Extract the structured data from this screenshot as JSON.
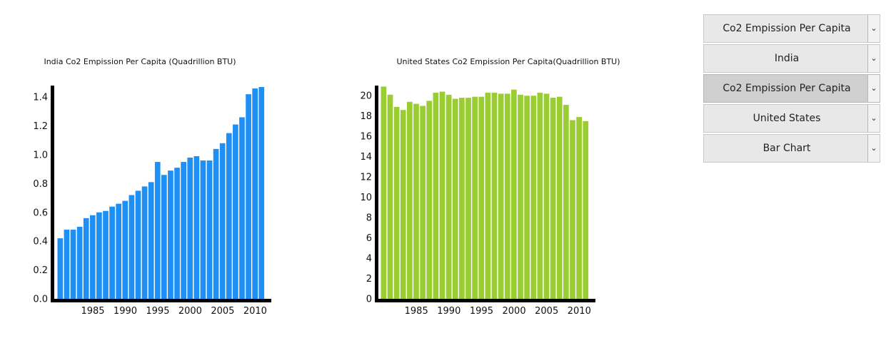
{
  "colors": {
    "india_bar": "#1e8ff5",
    "us_bar": "#9acd32",
    "axis": "#000000"
  },
  "controls": [
    {
      "label": "Co2 Empission Per Capita",
      "icon": "chevron-down-icon",
      "active": false
    },
    {
      "label": "India",
      "icon": "chevron-down-icon",
      "active": false
    },
    {
      "label": "Co2 Empission Per Capita",
      "icon": "chevron-down-icon",
      "active": true
    },
    {
      "label": "United States",
      "icon": "chevron-down-icon",
      "active": false
    },
    {
      "label": "Bar Chart",
      "icon": "chevron-down-icon",
      "active": false
    }
  ],
  "chart_data": [
    {
      "type": "bar",
      "title": "India Co2 Empission Per Capita (Quadrillion BTU)",
      "x": [
        1980,
        1981,
        1982,
        1983,
        1984,
        1985,
        1986,
        1987,
        1988,
        1989,
        1990,
        1991,
        1992,
        1993,
        1994,
        1995,
        1996,
        1997,
        1998,
        1999,
        2000,
        2001,
        2002,
        2003,
        2004,
        2005,
        2006,
        2007,
        2008,
        2009,
        2010,
        2011
      ],
      "values": [
        0.42,
        0.48,
        0.48,
        0.5,
        0.56,
        0.58,
        0.6,
        0.61,
        0.64,
        0.66,
        0.68,
        0.72,
        0.75,
        0.78,
        0.81,
        0.95,
        0.86,
        0.89,
        0.91,
        0.95,
        0.98,
        0.99,
        0.96,
        0.96,
        1.04,
        1.08,
        1.15,
        1.21,
        1.26,
        1.42,
        1.46,
        1.47
      ],
      "xticks": [
        1985,
        1990,
        1995,
        2000,
        2005,
        2010
      ],
      "yticks": [
        0.0,
        0.2,
        0.4,
        0.6,
        0.8,
        1.0,
        1.2,
        1.4
      ],
      "ytick_labels": [
        "0.0",
        "0.2",
        "0.4",
        "0.6",
        "0.8",
        "1.0",
        "1.2",
        "1.4"
      ],
      "ylim": [
        0,
        1.48
      ],
      "xlabel": "",
      "ylabel": ""
    },
    {
      "type": "bar",
      "title": "United States Co2 Empission Per Capita(Quadrillion BTU)",
      "x": [
        1980,
        1981,
        1982,
        1983,
        1984,
        1985,
        1986,
        1987,
        1988,
        1989,
        1990,
        1991,
        1992,
        1993,
        1994,
        1995,
        1996,
        1997,
        1998,
        1999,
        2000,
        2001,
        2002,
        2003,
        2004,
        2005,
        2006,
        2007,
        2008,
        2009,
        2010,
        2011
      ],
      "values": [
        20.9,
        20.1,
        18.9,
        18.6,
        19.4,
        19.2,
        19.0,
        19.5,
        20.3,
        20.4,
        20.1,
        19.7,
        19.8,
        19.8,
        19.9,
        19.9,
        20.3,
        20.3,
        20.2,
        20.2,
        20.6,
        20.1,
        20.0,
        20.0,
        20.3,
        20.2,
        19.8,
        19.9,
        19.1,
        17.6,
        17.9,
        17.5
      ],
      "xticks": [
        1985,
        1990,
        1995,
        2000,
        2005,
        2010
      ],
      "yticks": [
        0,
        2,
        4,
        6,
        8,
        10,
        12,
        14,
        16,
        18,
        20
      ],
      "ytick_labels": [
        "0",
        "2",
        "4",
        "6",
        "8",
        "10",
        "12",
        "14",
        "16",
        "18",
        "20"
      ],
      "ylim": [
        0,
        21
      ],
      "xlabel": "",
      "ylabel": ""
    }
  ]
}
